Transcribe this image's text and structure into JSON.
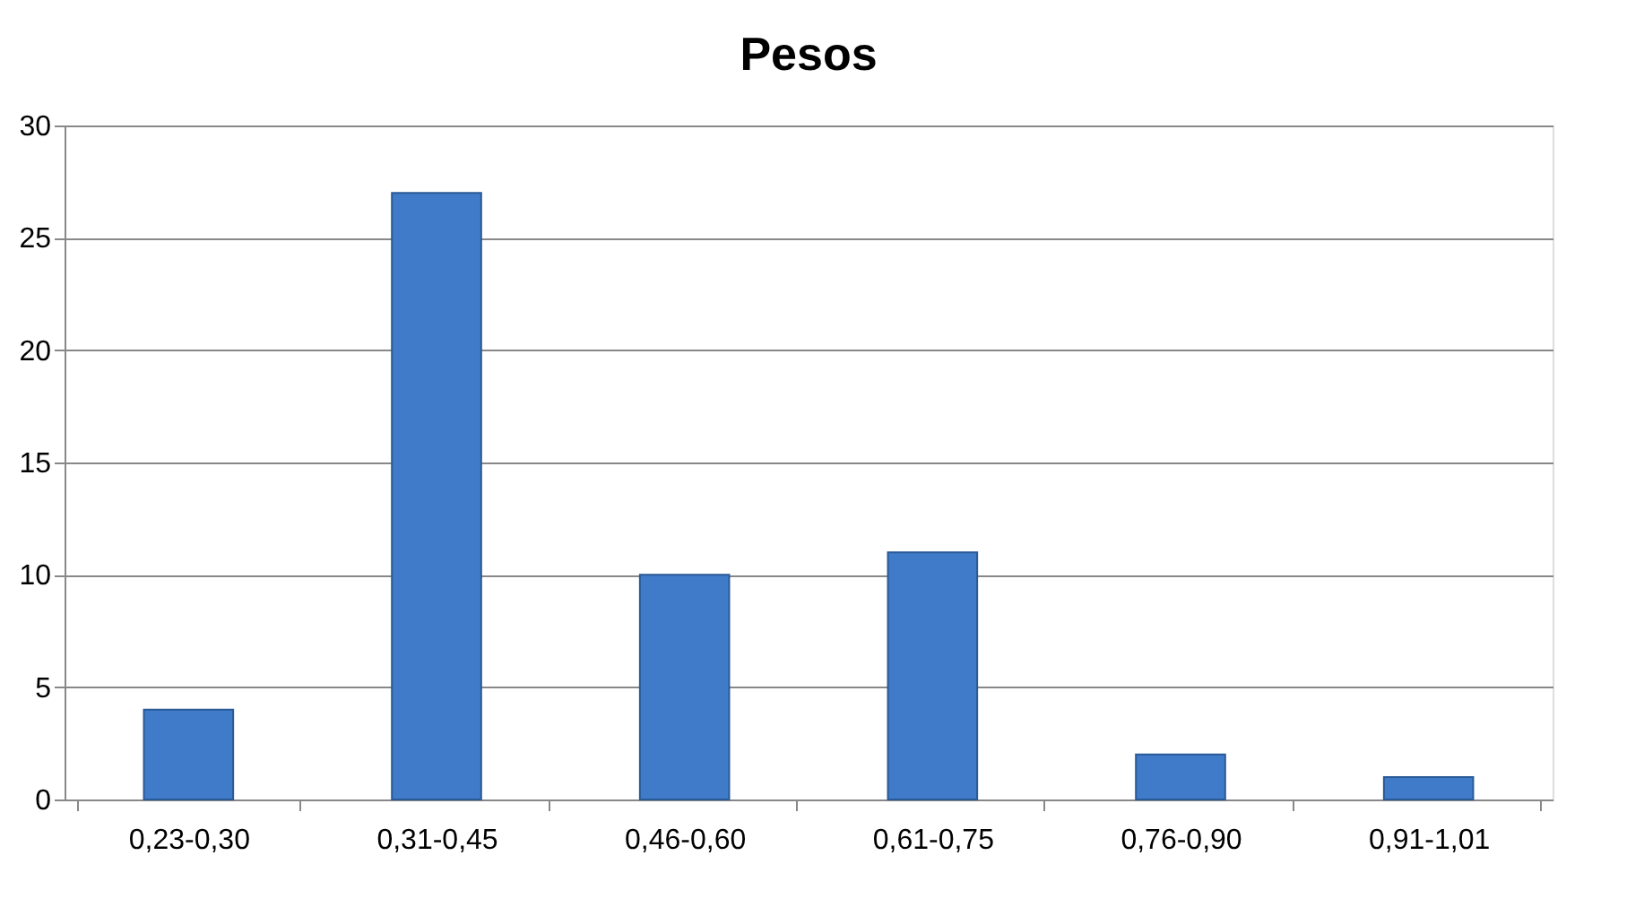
{
  "chart_data": {
    "type": "bar",
    "title": "Pesos",
    "categories": [
      "0,23-0,30",
      "0,31-0,45",
      "0,46-0,60",
      "0,61-0,75",
      "0,76-0,90",
      "0,91-1,01"
    ],
    "values": [
      4,
      27,
      10,
      11,
      2,
      1
    ],
    "color": "#3f7bc8",
    "ylim": [
      0,
      30
    ],
    "yticks": [
      0,
      5,
      10,
      15,
      20,
      25,
      30
    ],
    "grid": "y"
  }
}
